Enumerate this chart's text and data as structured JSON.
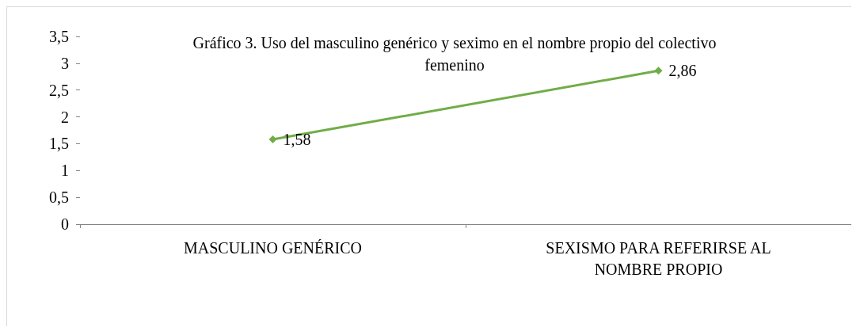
{
  "chart_data": {
    "type": "line",
    "title": "Gráfico 3. Uso del masculino genérico y seximo en el nombre propio del colectivo\nfemenino",
    "categories": [
      "MASCULINO GENÉRICO",
      "SEXISMO PARA REFERIRSE AL\nNOMBRE PROPIO"
    ],
    "series": [
      {
        "color": "#70ad47",
        "values": [
          1.58,
          2.86
        ],
        "value_labels": [
          "1,58",
          "2,86"
        ]
      }
    ],
    "ylim": [
      0,
      3.5
    ],
    "yticks": [
      0,
      {
        "value": 0.5,
        "label": "0,5"
      },
      1,
      {
        "value": 1.5,
        "label": "1,5"
      },
      2,
      {
        "value": 2.5,
        "label": "2,5"
      },
      3,
      {
        "value": 3.5,
        "label": "3,5"
      }
    ],
    "grid": false,
    "marker": "diamond",
    "line_style": "solid"
  }
}
